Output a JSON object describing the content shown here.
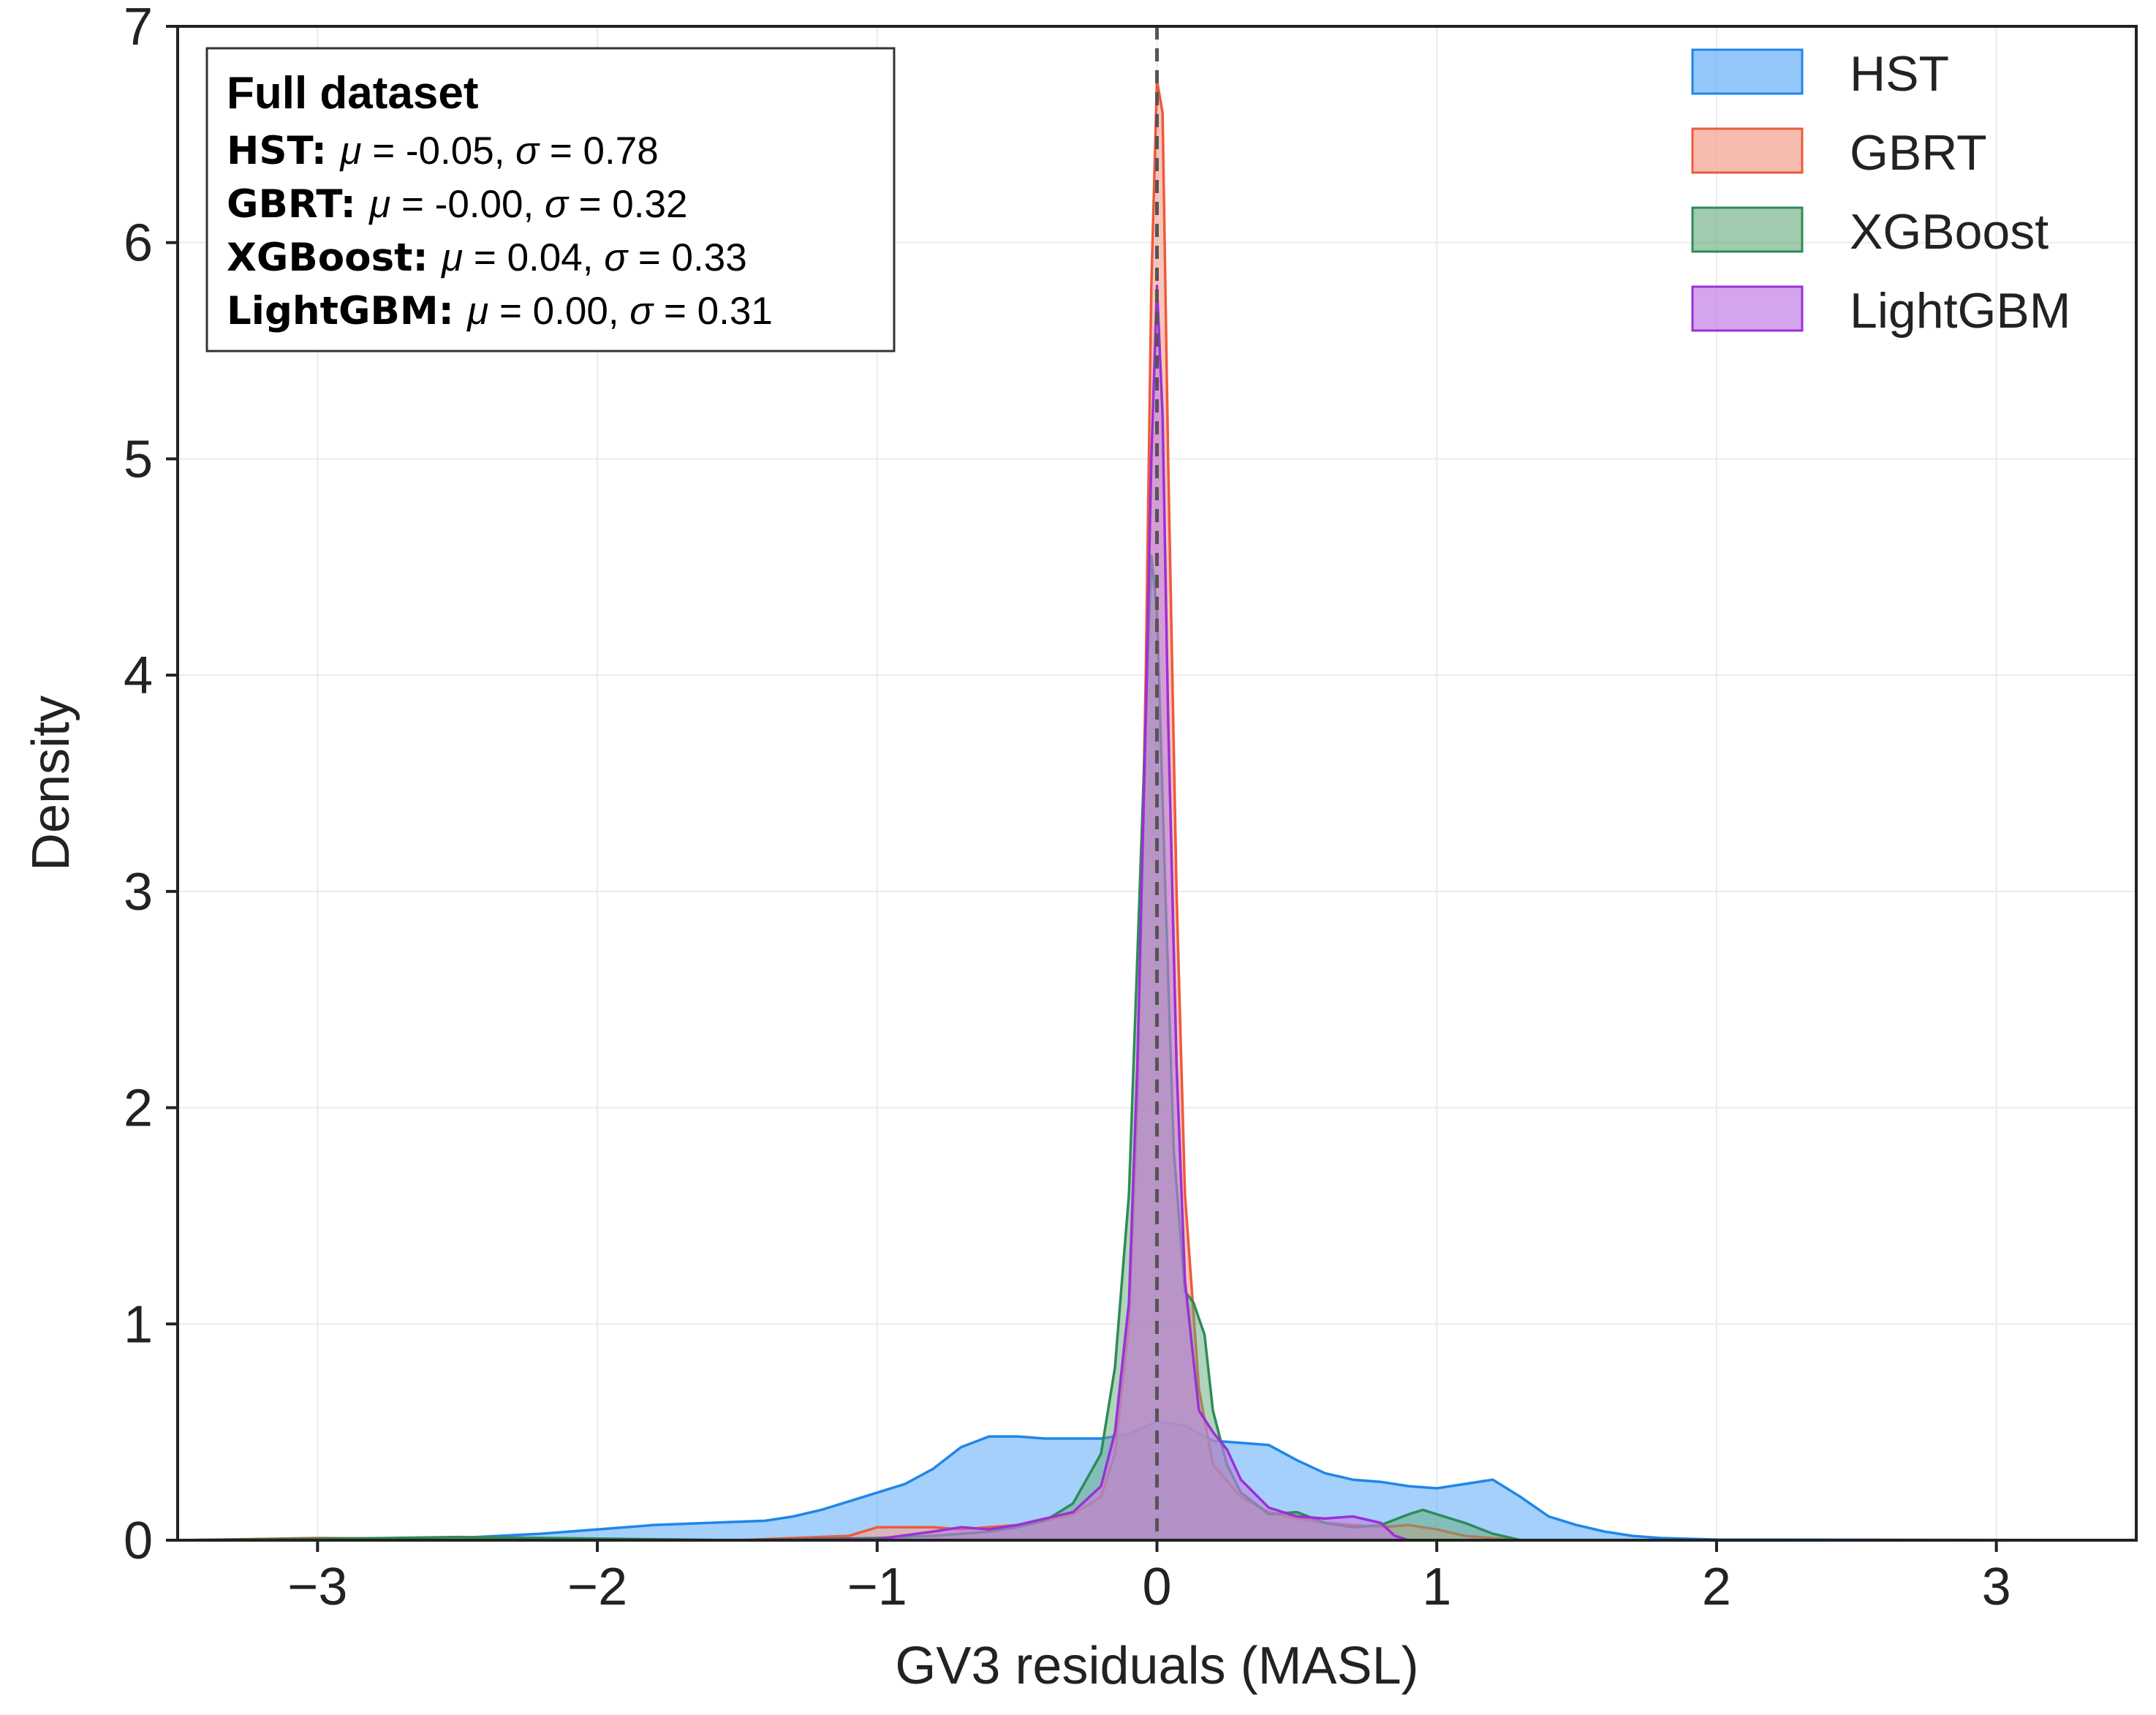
{
  "chart_data": {
    "type": "area",
    "xlabel": "GV3 residuals (MASL)",
    "ylabel": "Density",
    "xlim": [
      -3.5,
      3.5
    ],
    "ylim": [
      0,
      7
    ],
    "x_ticks": [
      -3,
      -2,
      -1,
      0,
      1,
      2,
      3
    ],
    "x_tick_labels": [
      "−3",
      "−2",
      "−1",
      "0",
      "1",
      "2",
      "3"
    ],
    "y_ticks": [
      0,
      1,
      2,
      3,
      4,
      5,
      6,
      7
    ],
    "y_tick_labels": [
      "0",
      "1",
      "2",
      "3",
      "4",
      "5",
      "6",
      "7"
    ],
    "grid": true,
    "legend_position": "top-right",
    "reference_line": {
      "x": 0,
      "style": "dashed",
      "color": "#555555"
    },
    "stats_box": {
      "title": "Full dataset",
      "lines": [
        {
          "name": "HST",
          "mu": "-0.05",
          "sigma": "0.78"
        },
        {
          "name": "GBRT",
          "mu": "-0.00",
          "sigma": "0.32"
        },
        {
          "name": "XGBoost",
          "mu": "0.04",
          "sigma": "0.33"
        },
        {
          "name": "LightGBM",
          "mu": "0.00",
          "sigma": "0.31"
        }
      ]
    },
    "series": [
      {
        "name": "HST",
        "stroke": "#1f86e8",
        "fill": "#5aaaf7",
        "fill_opacity": 0.55,
        "points": [
          [
            -3.5,
            0
          ],
          [
            -3.0,
            0.005
          ],
          [
            -2.5,
            0.01
          ],
          [
            -2.2,
            0.03
          ],
          [
            -2.0,
            0.05
          ],
          [
            -1.8,
            0.07
          ],
          [
            -1.6,
            0.08
          ],
          [
            -1.4,
            0.09
          ],
          [
            -1.3,
            0.11
          ],
          [
            -1.2,
            0.14
          ],
          [
            -1.1,
            0.18
          ],
          [
            -1.0,
            0.22
          ],
          [
            -0.9,
            0.26
          ],
          [
            -0.8,
            0.33
          ],
          [
            -0.7,
            0.43
          ],
          [
            -0.6,
            0.48
          ],
          [
            -0.5,
            0.48
          ],
          [
            -0.4,
            0.47
          ],
          [
            -0.3,
            0.47
          ],
          [
            -0.2,
            0.47
          ],
          [
            -0.1,
            0.49
          ],
          [
            0.0,
            0.55
          ],
          [
            0.1,
            0.53
          ],
          [
            0.2,
            0.46
          ],
          [
            0.3,
            0.45
          ],
          [
            0.4,
            0.44
          ],
          [
            0.5,
            0.37
          ],
          [
            0.6,
            0.31
          ],
          [
            0.7,
            0.28
          ],
          [
            0.8,
            0.27
          ],
          [
            0.9,
            0.25
          ],
          [
            1.0,
            0.24
          ],
          [
            1.1,
            0.26
          ],
          [
            1.2,
            0.28
          ],
          [
            1.3,
            0.2
          ],
          [
            1.4,
            0.11
          ],
          [
            1.5,
            0.07
          ],
          [
            1.6,
            0.04
          ],
          [
            1.7,
            0.02
          ],
          [
            1.8,
            0.01
          ],
          [
            2.0,
            0.003
          ],
          [
            3.5,
            0
          ]
        ]
      },
      {
        "name": "GBRT",
        "stroke": "#ee5a3c",
        "fill": "#f4a696",
        "fill_opacity": 0.65,
        "points": [
          [
            -3.5,
            0
          ],
          [
            -3.0,
            0.01
          ],
          [
            -2.5,
            0.005
          ],
          [
            -1.5,
            0.0
          ],
          [
            -1.1,
            0.02
          ],
          [
            -1.0,
            0.06
          ],
          [
            -0.9,
            0.06
          ],
          [
            -0.8,
            0.06
          ],
          [
            -0.7,
            0.05
          ],
          [
            -0.6,
            0.06
          ],
          [
            -0.5,
            0.07
          ],
          [
            -0.4,
            0.09
          ],
          [
            -0.3,
            0.12
          ],
          [
            -0.2,
            0.2
          ],
          [
            -0.15,
            0.4
          ],
          [
            -0.1,
            1.0
          ],
          [
            -0.07,
            2.0
          ],
          [
            -0.04,
            4.0
          ],
          [
            -0.02,
            5.8
          ],
          [
            0.0,
            6.75
          ],
          [
            0.02,
            6.6
          ],
          [
            0.04,
            5.0
          ],
          [
            0.07,
            3.0
          ],
          [
            0.1,
            1.6
          ],
          [
            0.15,
            0.7
          ],
          [
            0.2,
            0.35
          ],
          [
            0.3,
            0.2
          ],
          [
            0.4,
            0.13
          ],
          [
            0.5,
            0.1
          ],
          [
            0.6,
            0.08
          ],
          [
            0.7,
            0.07
          ],
          [
            0.8,
            0.06
          ],
          [
            0.9,
            0.07
          ],
          [
            1.0,
            0.05
          ],
          [
            1.1,
            0.02
          ],
          [
            1.3,
            0
          ],
          [
            3.5,
            0
          ]
        ]
      },
      {
        "name": "XGBoost",
        "stroke": "#2e8b57",
        "fill": "#62a97a",
        "fill_opacity": 0.5,
        "points": [
          [
            -3.5,
            0
          ],
          [
            -2.75,
            0.01
          ],
          [
            -2.5,
            0.015
          ],
          [
            -1.5,
            0.0
          ],
          [
            -1.0,
            0.01
          ],
          [
            -0.8,
            0.02
          ],
          [
            -0.6,
            0.04
          ],
          [
            -0.5,
            0.06
          ],
          [
            -0.4,
            0.09
          ],
          [
            -0.3,
            0.17
          ],
          [
            -0.2,
            0.4
          ],
          [
            -0.15,
            0.8
          ],
          [
            -0.1,
            1.6
          ],
          [
            -0.07,
            2.7
          ],
          [
            -0.04,
            3.8
          ],
          [
            -0.02,
            4.55
          ],
          [
            0.0,
            4.3
          ],
          [
            0.03,
            3.0
          ],
          [
            0.06,
            1.8
          ],
          [
            0.1,
            1.15
          ],
          [
            0.13,
            1.1
          ],
          [
            0.17,
            0.95
          ],
          [
            0.2,
            0.6
          ],
          [
            0.25,
            0.35
          ],
          [
            0.3,
            0.22
          ],
          [
            0.4,
            0.12
          ],
          [
            0.5,
            0.13
          ],
          [
            0.6,
            0.08
          ],
          [
            0.7,
            0.06
          ],
          [
            0.8,
            0.07
          ],
          [
            0.9,
            0.12
          ],
          [
            0.95,
            0.14
          ],
          [
            1.0,
            0.12
          ],
          [
            1.1,
            0.08
          ],
          [
            1.2,
            0.03
          ],
          [
            1.3,
            0
          ],
          [
            3.5,
            0
          ]
        ]
      },
      {
        "name": "LightGBM",
        "stroke": "#9b30d6",
        "fill": "#c27fe6",
        "fill_opacity": 0.6,
        "points": [
          [
            -3.5,
            0
          ],
          [
            -1.5,
            0.0
          ],
          [
            -1.0,
            0.005
          ],
          [
            -0.8,
            0.04
          ],
          [
            -0.7,
            0.06
          ],
          [
            -0.6,
            0.05
          ],
          [
            -0.5,
            0.07
          ],
          [
            -0.4,
            0.1
          ],
          [
            -0.3,
            0.13
          ],
          [
            -0.2,
            0.25
          ],
          [
            -0.15,
            0.5
          ],
          [
            -0.1,
            1.1
          ],
          [
            -0.07,
            2.2
          ],
          [
            -0.04,
            3.8
          ],
          [
            -0.02,
            5.0
          ],
          [
            0.0,
            5.8
          ],
          [
            0.02,
            5.2
          ],
          [
            0.04,
            3.8
          ],
          [
            0.07,
            2.2
          ],
          [
            0.1,
            1.2
          ],
          [
            0.15,
            0.6
          ],
          [
            0.2,
            0.5
          ],
          [
            0.25,
            0.42
          ],
          [
            0.3,
            0.28
          ],
          [
            0.4,
            0.15
          ],
          [
            0.5,
            0.11
          ],
          [
            0.6,
            0.1
          ],
          [
            0.7,
            0.11
          ],
          [
            0.8,
            0.08
          ],
          [
            0.85,
            0.02
          ],
          [
            0.9,
            0
          ],
          [
            3.5,
            0
          ]
        ]
      }
    ]
  }
}
